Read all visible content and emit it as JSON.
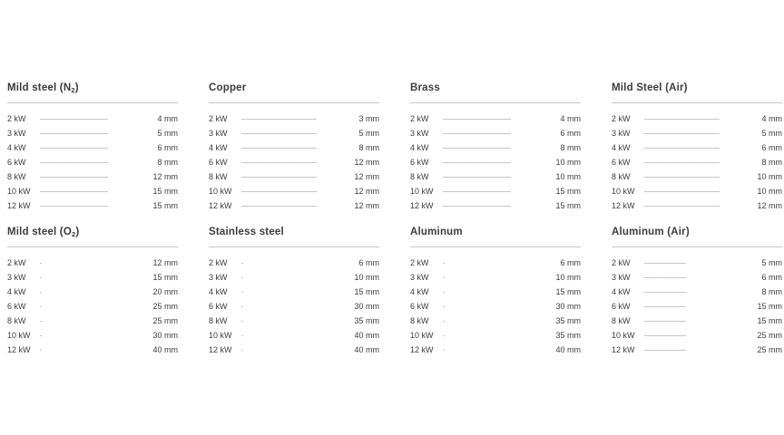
{
  "chart_data": [
    {
      "type": "bar",
      "title": "Mild steel (N2)",
      "title_parts": {
        "pre": "Mild steel (N",
        "sub": "2",
        "post": ")"
      },
      "categories": [
        "2 kW",
        "3 kW",
        "4 kW",
        "6 kW",
        "8 kW",
        "10 kW",
        "12 kW"
      ],
      "values": [
        4,
        5,
        6,
        8,
        12,
        15,
        15
      ],
      "unit": "mm",
      "value_labels": [
        "4 mm",
        "5 mm",
        "6 mm",
        "8 mm",
        "12 mm",
        "15 mm",
        "15 mm"
      ],
      "bar_colors": [
        "#e7efd1",
        "#d9e6b3",
        "#c5da8f",
        "#b4d170",
        "#a3c94e",
        "#8dbd20",
        "#8dbd20"
      ],
      "xlabel": "",
      "ylabel": "",
      "legend": false,
      "grid": false
    },
    {
      "type": "bar",
      "title": "Copper",
      "title_parts": {
        "pre": "Copper",
        "sub": "",
        "post": ""
      },
      "categories": [
        "2 kW",
        "3 kW",
        "4 kW",
        "6 kW",
        "8 kW",
        "10 kW",
        "12 kW"
      ],
      "values": [
        3,
        5,
        8,
        12,
        12,
        12,
        12
      ],
      "unit": "mm",
      "value_labels": [
        "3 mm",
        "5 mm",
        "8 mm",
        "12 mm",
        "12 mm",
        "12 mm",
        "12 mm"
      ],
      "bar_colors": [
        "#d8d2e5",
        "#b7abd0",
        "#a89cc6",
        "#67508f",
        "#67508f",
        "#67508f",
        "#67508f"
      ],
      "xlabel": "",
      "ylabel": "",
      "legend": false,
      "grid": false
    },
    {
      "type": "bar",
      "title": "Brass",
      "title_parts": {
        "pre": "Brass",
        "sub": "",
        "post": ""
      },
      "categories": [
        "2 kW",
        "3 kW",
        "4 kW",
        "6 kW",
        "8 kW",
        "10 kW",
        "12 kW"
      ],
      "values": [
        4,
        6,
        8,
        10,
        10,
        15,
        15
      ],
      "unit": "mm",
      "value_labels": [
        "4 mm",
        "6 mm",
        "8 mm",
        "10 mm",
        "10 mm",
        "15 mm",
        "15 mm"
      ],
      "bar_colors": [
        "#f4ecc5",
        "#eee09e",
        "#e2cd55",
        "#dcc52d",
        "#dcc52d",
        "#d2b70f",
        "#d2b70f"
      ],
      "xlabel": "",
      "ylabel": "",
      "legend": false,
      "grid": false
    },
    {
      "type": "bar",
      "title": "Mild Steel (Air)",
      "title_parts": {
        "pre": "Mild Steel (Air)",
        "sub": "",
        "post": ""
      },
      "categories": [
        "2 kW",
        "3 kW",
        "4 kW",
        "6 kW",
        "8 kW",
        "10 kW",
        "12 kW"
      ],
      "values": [
        4,
        5,
        6,
        8,
        10,
        10,
        12
      ],
      "unit": "mm",
      "value_labels": [
        "4 mm",
        "5 mm",
        "6 mm",
        "8 mm",
        "10 mm",
        "10 mm",
        "12 mm"
      ],
      "bar_colors": [
        "#edebdf",
        "#e5e0d0",
        "#d9d2bd",
        "#cfc5a9",
        "#c2b391",
        "#bcad87",
        "#b5a67d"
      ],
      "xlabel": "",
      "ylabel": "",
      "legend": false,
      "grid": false
    },
    {
      "type": "bar",
      "title": "Mild steel (O2)",
      "title_parts": {
        "pre": "Mild steel (O",
        "sub": "2",
        "post": ")"
      },
      "categories": [
        "2 kW",
        "3 kW",
        "4 kW",
        "6 kW",
        "8 kW",
        "10 kW",
        "12 kW"
      ],
      "values": [
        12,
        15,
        20,
        25,
        25,
        30,
        40
      ],
      "unit": "mm",
      "value_labels": [
        "12 mm",
        "15 mm",
        "20 mm",
        "25 mm",
        "25 mm",
        "30 mm",
        "40 mm"
      ],
      "bar_colors": [
        "#fce4cb",
        "#f9d3aa",
        "#f5b56b",
        "#f19c3a",
        "#f19c3a",
        "#ee8a10",
        "#ee8a10"
      ],
      "xlabel": "",
      "ylabel": "",
      "legend": false,
      "grid": false
    },
    {
      "type": "bar",
      "title": "Stainless steel",
      "title_parts": {
        "pre": "Stainless steel",
        "sub": "",
        "post": ""
      },
      "categories": [
        "2 kW",
        "3 kW",
        "4 kW",
        "6 kW",
        "8 kW",
        "10 kW",
        "12 kW"
      ],
      "values": [
        6,
        10,
        15,
        30,
        35,
        40,
        40
      ],
      "unit": "mm",
      "value_labels": [
        "6 mm",
        "10 mm",
        "15 mm",
        "30 mm",
        "35 mm",
        "40 mm",
        "40 mm"
      ],
      "bar_colors": [
        "#cfdff2",
        "#b0c9e9",
        "#9dbde2",
        "#7fa9d5",
        "#5f92ca",
        "#1274b7",
        "#1274b7"
      ],
      "xlabel": "",
      "ylabel": "",
      "legend": false,
      "grid": false
    },
    {
      "type": "bar",
      "title": "Aluminum",
      "title_parts": {
        "pre": "Aluminum",
        "sub": "",
        "post": ""
      },
      "categories": [
        "2 kW",
        "3 kW",
        "4 kW",
        "6 kW",
        "8 kW",
        "10 kW",
        "12 kW"
      ],
      "values": [
        6,
        10,
        15,
        30,
        35,
        35,
        40
      ],
      "unit": "mm",
      "value_labels": [
        "6 mm",
        "10 mm",
        "15 mm",
        "30 mm",
        "35 mm",
        "35 mm",
        "40 mm"
      ],
      "bar_colors": [
        "#eed5e7",
        "#e3bcd9",
        "#dcaad1",
        "#c974ae",
        "#b72a95",
        "#b72a95",
        "#b42092"
      ],
      "xlabel": "",
      "ylabel": "",
      "legend": false,
      "grid": false
    },
    {
      "type": "bar",
      "title": "Aluminum (Air)",
      "title_parts": {
        "pre": "Aluminum (Air)",
        "sub": "",
        "post": ""
      },
      "categories": [
        "2 kW",
        "3 kW",
        "4 kW",
        "6 kW",
        "8 kW",
        "10 kW",
        "12 kW"
      ],
      "values": [
        5,
        6,
        8,
        15,
        15,
        25,
        25
      ],
      "unit": "mm",
      "value_labels": [
        "5 mm",
        "6 mm",
        "8 mm",
        "15 mm",
        "15 mm",
        "25 mm",
        "25 mm"
      ],
      "bar_colors": [
        "#dfefe9",
        "#c0ddd2",
        "#9ecfbd",
        "#6eb69c",
        "#6eb69c",
        "#53aa8e",
        "#53aa8e"
      ],
      "xlabel": "",
      "ylabel": "",
      "legend": false,
      "grid": false
    }
  ]
}
